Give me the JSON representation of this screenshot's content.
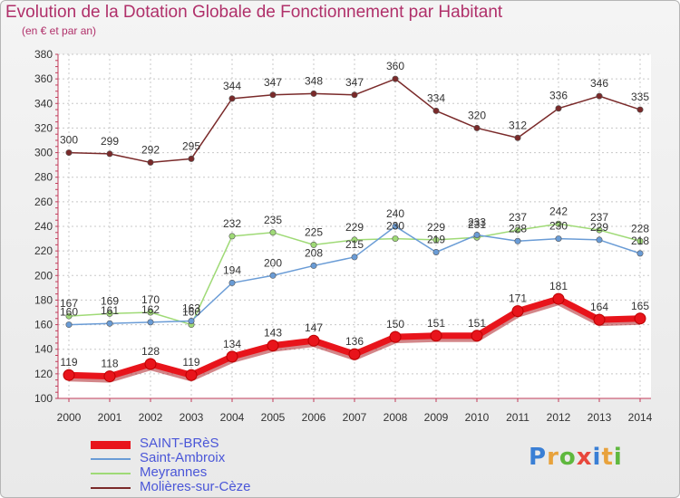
{
  "title": "Evolution de la Dotation Globale de Fonctionnement par Habitant",
  "subtitle": "(en € et par an)",
  "logo": {
    "text": "Proxiti",
    "colors": [
      "#3a7fd5",
      "#e8a23c",
      "#5fb83e",
      "#e8473c",
      "#3a7fd5",
      "#e8a23c",
      "#5fb83e"
    ]
  },
  "chart_data": {
    "type": "line",
    "title": "Evolution de la Dotation Globale de Fonctionnement par Habitant",
    "subtitle": "(en € et par an)",
    "xlabel": "",
    "ylabel": "",
    "ylim": [
      100,
      380
    ],
    "yticks": [
      100,
      120,
      140,
      160,
      180,
      200,
      220,
      240,
      260,
      280,
      300,
      320,
      340,
      360,
      380
    ],
    "grid": true,
    "legend": "bottom-left",
    "categories": [
      "2000",
      "2001",
      "2002",
      "2003",
      "2004",
      "2005",
      "2006",
      "2007",
      "2008",
      "2009",
      "2010",
      "2011",
      "2012",
      "2013",
      "2014"
    ],
    "series": [
      {
        "name": "SAINT-BRèS",
        "color": "#e8141b",
        "values": [
          119,
          118,
          128,
          119,
          134,
          143,
          147,
          136,
          150,
          151,
          151,
          171,
          181,
          164,
          165
        ]
      },
      {
        "name": "Saint-Ambroix",
        "color": "#6a9cd6",
        "values": [
          160,
          161,
          162,
          163,
          194,
          200,
          208,
          215,
          240,
          219,
          233,
          228,
          230,
          229,
          218
        ]
      },
      {
        "name": "Meyrannes",
        "color": "#9fda76",
        "values": [
          167,
          169,
          170,
          160,
          232,
          235,
          225,
          229,
          230,
          229,
          231,
          237,
          242,
          237,
          228
        ]
      },
      {
        "name": "Molières-sur-Cèze",
        "color": "#7a2a2a",
        "values": [
          300,
          299,
          292,
          295,
          344,
          347,
          348,
          347,
          360,
          334,
          320,
          312,
          336,
          346,
          335
        ]
      }
    ]
  }
}
